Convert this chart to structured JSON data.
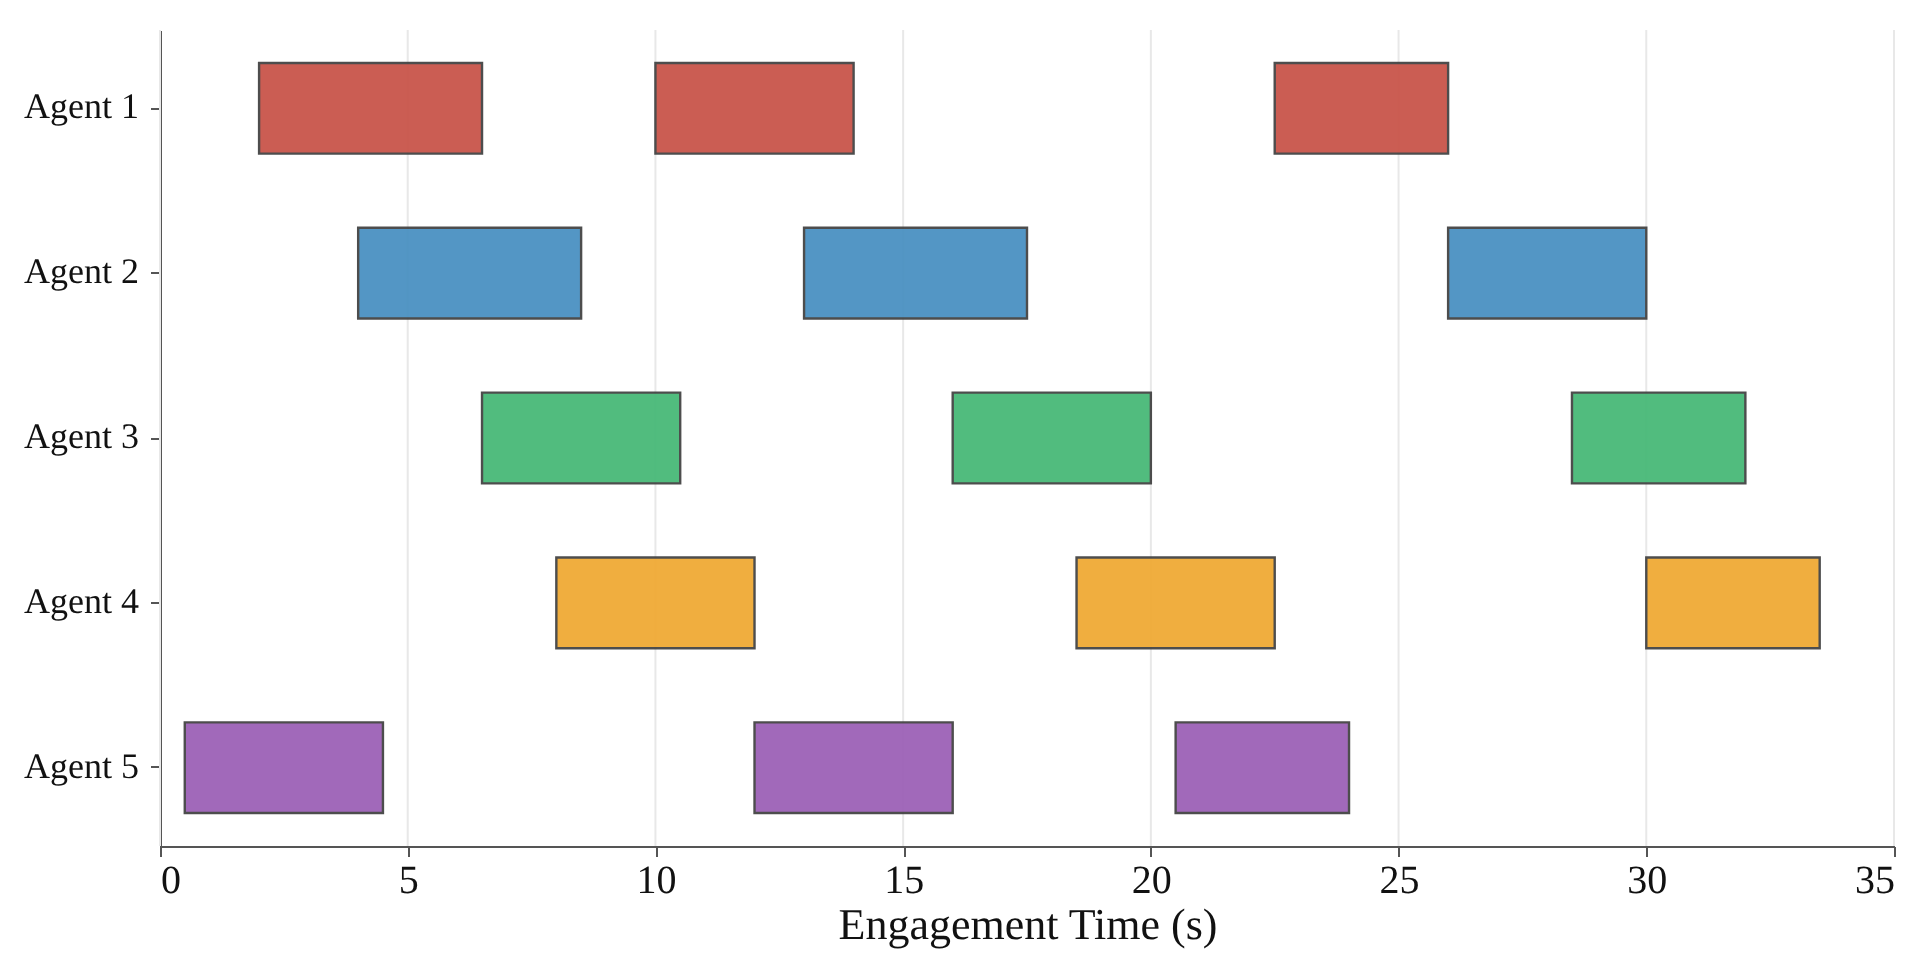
{
  "chart_data": {
    "type": "bar",
    "orientation": "horizontal",
    "xlabel": "Engagement Time (s)",
    "categories": [
      "Agent 1",
      "Agent 2",
      "Agent 3",
      "Agent 4",
      "Agent 5"
    ],
    "series": [
      {
        "colors": [
          "#c9554a",
          "#4a91c2",
          "#48b978",
          "#f0aa35",
          "#9d62b7"
        ],
        "base": [
          2,
          4,
          6.5,
          8,
          0.5
        ],
        "values": [
          4.5,
          4.5,
          4,
          4,
          4
        ]
      },
      {
        "colors": [
          "#c9554a",
          "#4a91c2",
          "#48b978",
          "#f0aa35",
          "#9d62b7"
        ],
        "base": [
          10,
          13,
          16,
          18.5,
          12
        ],
        "values": [
          4,
          4.5,
          4,
          4,
          4
        ]
      },
      {
        "colors": [
          "#c9554a",
          "#4a91c2",
          "#48b978",
          "#f0aa35",
          "#9d62b7"
        ],
        "base": [
          22.5,
          26,
          28.5,
          30,
          20.5
        ],
        "values": [
          3.5,
          4,
          3.5,
          3.5,
          3.5
        ]
      }
    ],
    "xlim": [
      0,
      35
    ],
    "xticks": [
      0,
      5,
      10,
      15,
      20,
      25,
      30,
      35
    ],
    "grid": "x"
  }
}
